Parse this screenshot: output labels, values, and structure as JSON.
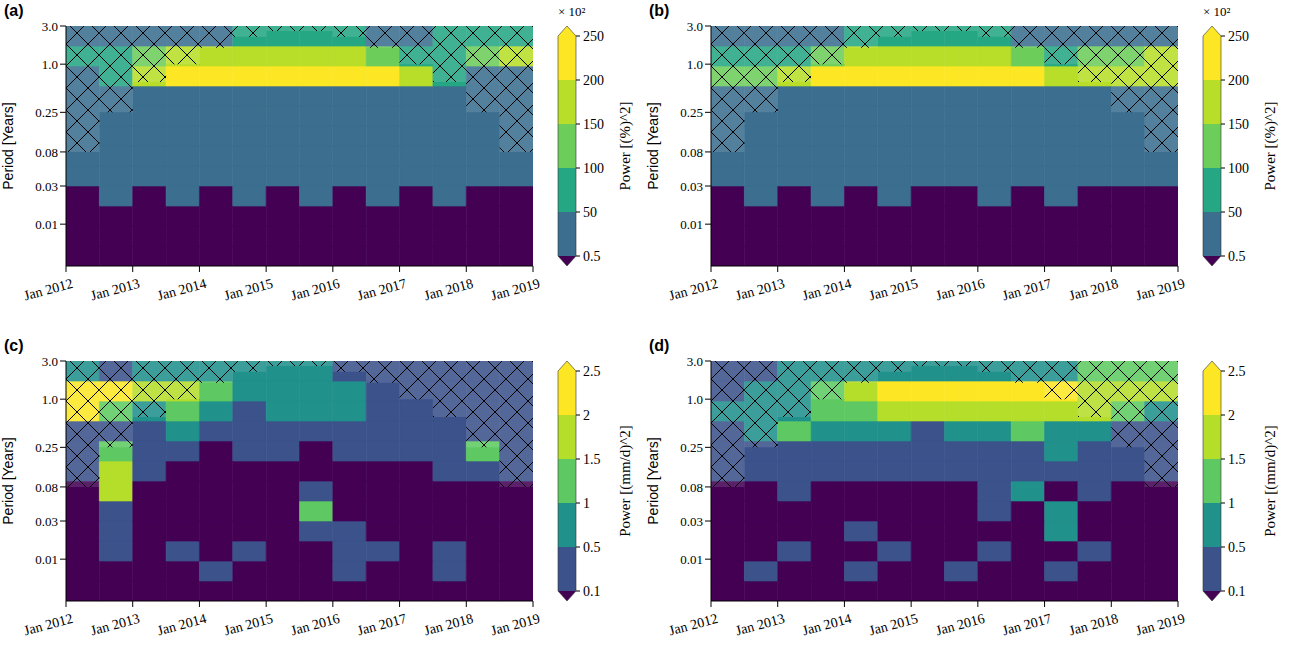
{
  "chart_data": [
    {
      "type": "heatmap",
      "panel": "(a)",
      "x_label": null,
      "y_label": "Period [Years]",
      "log": "y",
      "xlim": [
        2012,
        2019
      ],
      "xticks": [
        {
          "value": 2012,
          "label": "Jan 2012"
        },
        {
          "value": 2013,
          "label": "Jan 2013"
        },
        {
          "value": 2014,
          "label": "Jan 2014"
        },
        {
          "value": 2015,
          "label": "Jan 2015"
        },
        {
          "value": 2016,
          "label": "Jan 2016"
        },
        {
          "value": 2017,
          "label": "Jan 2017"
        },
        {
          "value": 2018,
          "label": "Jan 2018"
        },
        {
          "value": 2019,
          "label": "Jan 2019"
        }
      ],
      "ylim": [
        0.003,
        3.0
      ],
      "yticks": [
        0.01,
        0.03,
        0.08,
        0.25,
        {
          "value": 1,
          "label": "1.0"
        },
        {
          "value": 3,
          "label": "3.0"
        }
      ],
      "x": [
        2012.25,
        2012.75,
        2013.25,
        2013.75,
        2014.25,
        2014.75,
        2015.25,
        2015.75,
        2016.25,
        2016.75,
        2017.25,
        2017.75,
        2018.25,
        2018.75
      ],
      "y": [
        0.004,
        0.0071,
        0.0126,
        0.0225,
        0.04,
        0.071,
        0.126,
        0.225,
        0.4,
        0.71,
        1.26,
        2.25
      ],
      "coi": [
        0.08,
        0.25,
        0.6,
        1.0,
        1.6,
        2.2,
        2.6,
        2.6,
        2.2,
        1.6,
        1.0,
        0.6,
        0.25,
        0.08
      ],
      "power": [
        [
          0.2,
          0.2,
          0.2,
          0.2,
          0.2,
          0.2,
          0.2,
          0.2,
          0.2,
          0.2,
          0.2,
          0.2,
          0.2,
          0.2
        ],
        [
          0.3,
          0.2,
          0.3,
          0.3,
          0.2,
          0.3,
          0.3,
          0.2,
          0.3,
          0.3,
          0.2,
          0.3,
          0.3,
          0.2
        ],
        [
          0.3,
          0.4,
          0.3,
          0.3,
          0.4,
          0.3,
          0.3,
          0.4,
          0.3,
          0.3,
          0.4,
          0.3,
          0.3,
          0.3
        ],
        [
          0.4,
          3,
          0.4,
          5,
          0.4,
          4,
          0.3,
          4,
          0.4,
          3,
          0.4,
          4,
          0.3,
          0.4
        ],
        [
          3,
          8,
          2,
          10,
          3,
          8,
          5,
          9,
          2,
          8,
          4,
          6,
          3,
          2
        ],
        [
          10,
          15,
          8,
          20,
          12,
          18,
          15,
          20,
          10,
          15,
          12,
          15,
          10,
          8
        ],
        [
          20,
          25,
          20,
          25,
          22,
          25,
          20,
          25,
          20,
          22,
          20,
          25,
          20,
          15
        ],
        [
          25,
          25,
          20,
          25,
          25,
          25,
          25,
          25,
          20,
          25,
          25,
          25,
          20,
          20
        ],
        [
          30,
          35,
          40,
          40,
          40,
          45,
          40,
          40,
          40,
          40,
          35,
          30,
          25,
          25
        ],
        [
          40,
          90,
          170,
          220,
          230,
          230,
          230,
          230,
          220,
          200,
          150,
          60,
          40,
          35
        ],
        [
          60,
          80,
          120,
          150,
          150,
          160,
          170,
          170,
          150,
          120,
          90,
          70,
          130,
          160
        ],
        [
          30,
          30,
          30,
          40,
          40,
          60,
          70,
          60,
          50,
          40,
          40,
          50,
          60,
          60
        ]
      ],
      "colorbar": {
        "label": "Power [(%)^2]",
        "multiplier": "× 10²",
        "levels": [
          0.5,
          50,
          100,
          150,
          200,
          250
        ],
        "colors": [
          "#440154",
          "#3b6e8f",
          "#26a784",
          "#6ccd5a",
          "#b8de29",
          "#fde725",
          "#fde725"
        ]
      }
    },
    {
      "type": "heatmap",
      "panel": "(b)",
      "x_label": null,
      "y_label": "Period [Years]",
      "log": "y",
      "xlim": [
        2012,
        2019
      ],
      "xticks": [
        {
          "value": 2012,
          "label": "Jan 2012"
        },
        {
          "value": 2013,
          "label": "Jan 2013"
        },
        {
          "value": 2014,
          "label": "Jan 2014"
        },
        {
          "value": 2015,
          "label": "Jan 2015"
        },
        {
          "value": 2016,
          "label": "Jan 2016"
        },
        {
          "value": 2017,
          "label": "Jan 2017"
        },
        {
          "value": 2018,
          "label": "Jan 2018"
        },
        {
          "value": 2019,
          "label": "Jan 2019"
        }
      ],
      "ylim": [
        0.003,
        3.0
      ],
      "yticks": [
        0.01,
        0.03,
        0.08,
        0.25,
        {
          "value": 1,
          "label": "1.0"
        },
        {
          "value": 3,
          "label": "3.0"
        }
      ],
      "x": [
        2012.25,
        2012.75,
        2013.25,
        2013.75,
        2014.25,
        2014.75,
        2015.25,
        2015.75,
        2016.25,
        2016.75,
        2017.25,
        2017.75,
        2018.25,
        2018.75
      ],
      "y": [
        0.004,
        0.0071,
        0.0126,
        0.0225,
        0.04,
        0.071,
        0.126,
        0.225,
        0.4,
        0.71,
        1.26,
        2.25
      ],
      "coi": [
        0.08,
        0.25,
        0.6,
        1.0,
        1.6,
        2.2,
        2.6,
        2.6,
        2.2,
        1.6,
        1.0,
        0.6,
        0.25,
        0.08
      ],
      "power": [
        [
          0.2,
          0.2,
          0.2,
          0.2,
          0.2,
          0.2,
          0.2,
          0.2,
          0.2,
          0.2,
          0.2,
          0.2,
          0.2,
          0.2
        ],
        [
          0.2,
          0.3,
          0.2,
          0.3,
          0.2,
          0.3,
          0.2,
          0.3,
          0.2,
          0.3,
          0.2,
          0.3,
          0.2,
          0.2
        ],
        [
          0.3,
          0.3,
          0.4,
          0.3,
          0.3,
          0.4,
          0.3,
          0.3,
          0.4,
          0.3,
          0.3,
          0.4,
          0.3,
          0.3
        ],
        [
          0.4,
          2,
          0.4,
          3,
          0.4,
          2,
          0.4,
          0.4,
          3,
          0.4,
          2,
          0.4,
          0.4,
          0.3
        ],
        [
          2,
          5,
          3,
          6,
          2,
          5,
          3,
          6,
          4,
          5,
          3,
          6,
          2,
          2
        ],
        [
          10,
          12,
          10,
          15,
          10,
          12,
          12,
          15,
          10,
          14,
          12,
          15,
          10,
          8
        ],
        [
          20,
          22,
          20,
          22,
          20,
          20,
          22,
          22,
          20,
          22,
          20,
          22,
          20,
          15
        ],
        [
          25,
          25,
          25,
          25,
          25,
          25,
          25,
          25,
          25,
          25,
          25,
          25,
          25,
          20
        ],
        [
          35,
          35,
          35,
          40,
          40,
          40,
          40,
          40,
          40,
          40,
          35,
          35,
          35,
          30
        ],
        [
          120,
          100,
          150,
          220,
          240,
          240,
          240,
          240,
          230,
          220,
          180,
          150,
          160,
          170
        ],
        [
          60,
          60,
          80,
          120,
          160,
          180,
          180,
          180,
          160,
          120,
          90,
          100,
          130,
          150
        ],
        [
          30,
          30,
          30,
          40,
          50,
          60,
          60,
          60,
          50,
          40,
          30,
          30,
          30,
          30
        ]
      ],
      "colorbar": {
        "label": "Power [(%)^2]",
        "multiplier": "× 10²",
        "levels": [
          0.5,
          50,
          100,
          150,
          200,
          250
        ],
        "colors": [
          "#440154",
          "#3b6e8f",
          "#26a784",
          "#6ccd5a",
          "#b8de29",
          "#fde725",
          "#fde725"
        ]
      }
    },
    {
      "type": "heatmap",
      "panel": "(c)",
      "x_label": null,
      "y_label": "Period [Years]",
      "log": "y",
      "xlim": [
        2012,
        2019
      ],
      "xticks": [
        {
          "value": 2012,
          "label": "Jan 2012"
        },
        {
          "value": 2013,
          "label": "Jan 2013"
        },
        {
          "value": 2014,
          "label": "Jan 2014"
        },
        {
          "value": 2015,
          "label": "Jan 2015"
        },
        {
          "value": 2016,
          "label": "Jan 2016"
        },
        {
          "value": 2017,
          "label": "Jan 2017"
        },
        {
          "value": 2018,
          "label": "Jan 2018"
        },
        {
          "value": 2019,
          "label": "Jan 2019"
        }
      ],
      "ylim": [
        0.003,
        3.0
      ],
      "yticks": [
        0.01,
        0.03,
        0.08,
        0.25,
        {
          "value": 1,
          "label": "1.0"
        },
        {
          "value": 3,
          "label": "3.0"
        }
      ],
      "x": [
        2012.25,
        2012.75,
        2013.25,
        2013.75,
        2014.25,
        2014.75,
        2015.25,
        2015.75,
        2016.25,
        2016.75,
        2017.25,
        2017.75,
        2018.25,
        2018.75
      ],
      "y": [
        0.004,
        0.0071,
        0.0126,
        0.0225,
        0.04,
        0.071,
        0.126,
        0.225,
        0.4,
        0.71,
        1.26,
        2.25
      ],
      "coi": [
        0.08,
        0.25,
        0.6,
        1.0,
        1.6,
        2.2,
        2.6,
        2.6,
        2.2,
        1.6,
        1.0,
        0.6,
        0.25,
        0.08
      ],
      "power": [
        [
          0.05,
          0.05,
          0.05,
          0.05,
          0.05,
          0.05,
          0.05,
          0.05,
          0.05,
          0.05,
          0.05,
          0.05,
          0.05,
          0.05
        ],
        [
          0.05,
          0.08,
          0.05,
          0.05,
          0.2,
          0.05,
          0.05,
          0.05,
          0.2,
          0.05,
          0.05,
          0.2,
          0.05,
          0.05
        ],
        [
          0.05,
          0.2,
          0.05,
          0.2,
          0.05,
          0.2,
          0.05,
          0.05,
          0.2,
          0.2,
          0.05,
          0.2,
          0.05,
          0.05
        ],
        [
          0.05,
          0.2,
          0.05,
          0.05,
          0.05,
          0.05,
          0.05,
          0.3,
          0.2,
          0.05,
          0.05,
          0.05,
          0.05,
          0.05
        ],
        [
          0.05,
          0.3,
          0.05,
          0.05,
          0.05,
          0.05,
          0.05,
          1.0,
          0.05,
          0.05,
          0.05,
          0.05,
          0.05,
          0.05
        ],
        [
          0.05,
          1.5,
          0.05,
          0.05,
          0.05,
          0.05,
          0.05,
          0.3,
          0.05,
          0.05,
          0.05,
          0.05,
          0.05,
          0.05
        ],
        [
          0.2,
          1.8,
          0.3,
          0.05,
          0.05,
          0.05,
          0.05,
          0.05,
          0.05,
          0.05,
          0.05,
          0.2,
          0.3,
          0.2
        ],
        [
          0.3,
          1.2,
          0.3,
          0.3,
          0.05,
          0.3,
          0.3,
          0.05,
          0.3,
          0.3,
          0.2,
          0.3,
          1.3,
          0.3
        ],
        [
          0.3,
          0.4,
          0.4,
          0.8,
          0.4,
          0.4,
          0.3,
          0.4,
          0.3,
          0.4,
          0.3,
          0.4,
          0.3,
          0.3
        ],
        [
          2.5,
          1.0,
          0.8,
          1.2,
          0.8,
          0.4,
          0.6,
          0.5,
          0.5,
          0.4,
          0.4,
          0.3,
          0.3,
          0.3
        ],
        [
          2.5,
          2.0,
          1.8,
          1.5,
          1.2,
          0.8,
          0.7,
          0.6,
          0.5,
          0.4,
          0.4,
          0.3,
          0.3,
          0.3
        ],
        [
          0.6,
          0.4,
          0.5,
          0.6,
          0.7,
          0.8,
          0.6,
          0.5,
          0.4,
          0.4,
          0.4,
          0.4,
          0.3,
          0.3
        ]
      ],
      "colorbar": {
        "label": "Power [(mm/d)^2]",
        "levels": [
          0.1,
          0.5,
          1,
          1.5,
          2,
          2.5
        ],
        "colors": [
          "#440154",
          "#3b528b",
          "#21918c",
          "#5ec962",
          "#b5de2b",
          "#fde725",
          "#fde725"
        ]
      }
    },
    {
      "type": "heatmap",
      "panel": "(d)",
      "x_label": null,
      "y_label": "Period [Years]",
      "log": "y",
      "xlim": [
        2012,
        2019
      ],
      "xticks": [
        {
          "value": 2012,
          "label": "Jan 2012"
        },
        {
          "value": 2013,
          "label": "Jan 2013"
        },
        {
          "value": 2014,
          "label": "Jan 2014"
        },
        {
          "value": 2015,
          "label": "Jan 2015"
        },
        {
          "value": 2016,
          "label": "Jan 2016"
        },
        {
          "value": 2017,
          "label": "Jan 2017"
        },
        {
          "value": 2018,
          "label": "Jan 2018"
        },
        {
          "value": 2019,
          "label": "Jan 2019"
        }
      ],
      "ylim": [
        0.003,
        3.0
      ],
      "yticks": [
        0.01,
        0.03,
        0.08,
        0.25,
        {
          "value": 1,
          "label": "1.0"
        },
        {
          "value": 3,
          "label": "3.0"
        }
      ],
      "x": [
        2012.25,
        2012.75,
        2013.25,
        2013.75,
        2014.25,
        2014.75,
        2015.25,
        2015.75,
        2016.25,
        2016.75,
        2017.25,
        2017.75,
        2018.25,
        2018.75
      ],
      "y": [
        0.004,
        0.0071,
        0.0126,
        0.0225,
        0.04,
        0.071,
        0.126,
        0.225,
        0.4,
        0.71,
        1.26,
        2.25
      ],
      "coi": [
        0.08,
        0.25,
        0.6,
        1.0,
        1.6,
        2.2,
        2.6,
        2.6,
        2.2,
        1.6,
        1.0,
        0.6,
        0.25,
        0.08
      ],
      "power": [
        [
          0.05,
          0.05,
          0.05,
          0.05,
          0.05,
          0.05,
          0.05,
          0.05,
          0.05,
          0.05,
          0.05,
          0.05,
          0.05,
          0.05
        ],
        [
          0.05,
          0.2,
          0.05,
          0.05,
          0.2,
          0.05,
          0.05,
          0.2,
          0.05,
          0.05,
          0.2,
          0.05,
          0.05,
          0.05
        ],
        [
          0.05,
          0.05,
          0.2,
          0.05,
          0.05,
          0.2,
          0.05,
          0.05,
          0.2,
          0.05,
          0.05,
          0.2,
          0.05,
          0.05
        ],
        [
          0.05,
          0.05,
          0.05,
          0.05,
          0.2,
          0.05,
          0.05,
          0.05,
          0.05,
          0.05,
          0.8,
          0.05,
          0.05,
          0.05
        ],
        [
          0.05,
          0.05,
          0.05,
          0.05,
          0.05,
          0.05,
          0.05,
          0.05,
          0.3,
          0.05,
          0.8,
          0.05,
          0.05,
          0.05
        ],
        [
          0.05,
          0.05,
          0.2,
          0.05,
          0.05,
          0.05,
          0.05,
          0.05,
          0.3,
          0.8,
          0.05,
          0.3,
          0.05,
          0.05
        ],
        [
          0.2,
          0.3,
          0.2,
          0.3,
          0.3,
          0.2,
          0.3,
          0.2,
          0.3,
          0.3,
          0.3,
          0.3,
          0.2,
          0.2
        ],
        [
          0.3,
          0.4,
          0.4,
          0.3,
          0.4,
          0.3,
          0.3,
          0.4,
          0.3,
          0.4,
          0.8,
          0.3,
          0.3,
          0.3
        ],
        [
          0.3,
          0.5,
          1.2,
          0.6,
          0.5,
          0.5,
          0.4,
          0.5,
          0.8,
          1.0,
          0.5,
          0.5,
          0.4,
          0.3
        ],
        [
          0.5,
          0.6,
          0.8,
          1.0,
          1.2,
          1.6,
          1.8,
          1.8,
          1.8,
          1.6,
          1.8,
          1.5,
          1.2,
          0.8
        ],
        [
          0.4,
          0.5,
          0.7,
          1.2,
          1.8,
          2.0,
          2.0,
          2.1,
          2.2,
          2.3,
          2.2,
          1.8,
          1.6,
          1.5
        ],
        [
          0.4,
          0.4,
          0.5,
          0.6,
          0.8,
          0.9,
          0.9,
          0.8,
          0.7,
          0.6,
          0.8,
          1.0,
          1.2,
          1.3
        ]
      ],
      "colorbar": {
        "label": "Power [(mm/d)^2]",
        "levels": [
          0.1,
          0.5,
          1,
          1.5,
          2,
          2.5
        ],
        "colors": [
          "#440154",
          "#3b528b",
          "#21918c",
          "#5ec962",
          "#b5de2b",
          "#fde725",
          "#fde725"
        ]
      }
    }
  ]
}
